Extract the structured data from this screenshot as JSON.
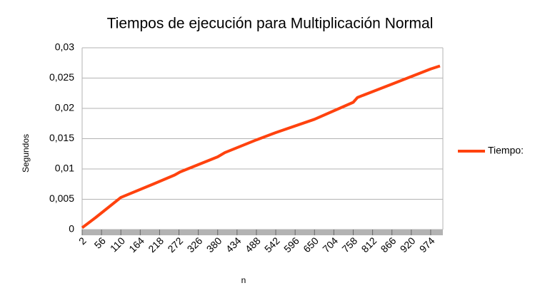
{
  "chart_data": {
    "type": "line",
    "title": "Tiempos de ejecución para Multiplicación Normal",
    "x_label": "n",
    "y_label": "Segundos",
    "x": [
      2,
      40,
      110,
      200,
      260,
      275,
      380,
      400,
      488,
      542,
      650,
      758,
      770,
      866,
      974,
      1000
    ],
    "series": [
      {
        "name": "Tiempo:",
        "color": "#ff420e",
        "values": [
          0.0003,
          0.002,
          0.0053,
          0.0075,
          0.009,
          0.0095,
          0.012,
          0.0127,
          0.0148,
          0.016,
          0.0182,
          0.021,
          0.0218,
          0.024,
          0.0265,
          0.027
        ]
      }
    ],
    "xlim": [
      2,
      1008
    ],
    "xticks": [
      2,
      56,
      110,
      164,
      218,
      272,
      326,
      380,
      434,
      488,
      542,
      596,
      650,
      704,
      758,
      812,
      866,
      920,
      974
    ],
    "ylim": [
      0,
      0.03
    ],
    "yticks": [
      0,
      {
        "value": 0.005,
        "label": "0,005"
      },
      {
        "value": 0.01,
        "label": "0,01"
      },
      {
        "value": 0.015,
        "label": "0,015"
      },
      {
        "value": 0.02,
        "label": "0,02"
      },
      {
        "value": 0.025,
        "label": "0,025"
      },
      {
        "value": 0.03,
        "label": "0,03"
      }
    ],
    "grid": true,
    "legend": "right"
  }
}
